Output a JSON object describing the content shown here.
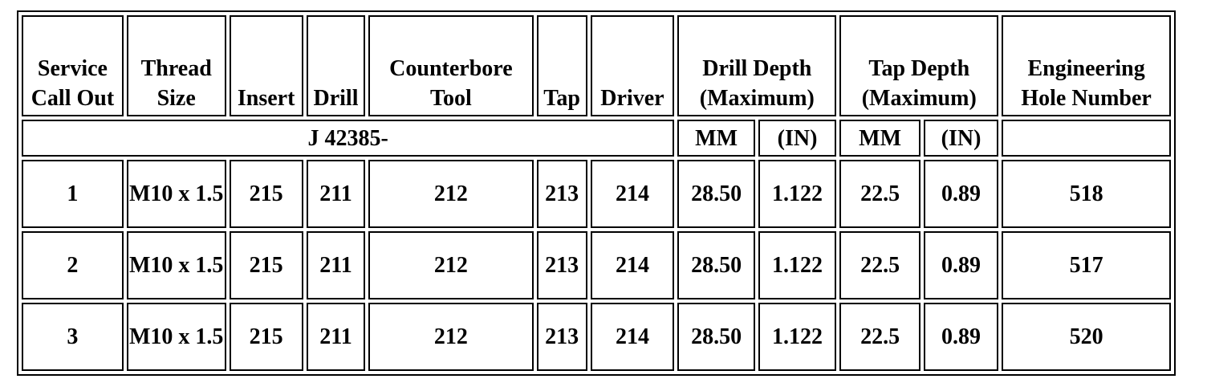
{
  "table": {
    "header": [
      "Service Call Out",
      "Thread Size",
      "Insert",
      "Drill",
      "Counterbore Tool",
      "Tap",
      "Driver",
      "Drill Depth (Maximum)",
      "Tap Depth (Maximum)",
      "Engineering Hole Number"
    ],
    "subheader": [
      "J 42385-",
      "MM",
      "(IN)",
      "MM",
      "(IN)"
    ],
    "rows": [
      [
        "1",
        "M10 x 1.5",
        "215",
        "211",
        "212",
        "213",
        "214",
        "28.50",
        "1.122",
        "22.5",
        "0.89",
        "518"
      ],
      [
        "2",
        "M10 x 1.5",
        "215",
        "211",
        "212",
        "213",
        "214",
        "28.50",
        "1.122",
        "22.5",
        "0.89",
        "517"
      ],
      [
        "3",
        "M10 x 1.5",
        "215",
        "211",
        "212",
        "213",
        "214",
        "28.50",
        "1.122",
        "22.5",
        "0.89",
        "520"
      ]
    ]
  }
}
